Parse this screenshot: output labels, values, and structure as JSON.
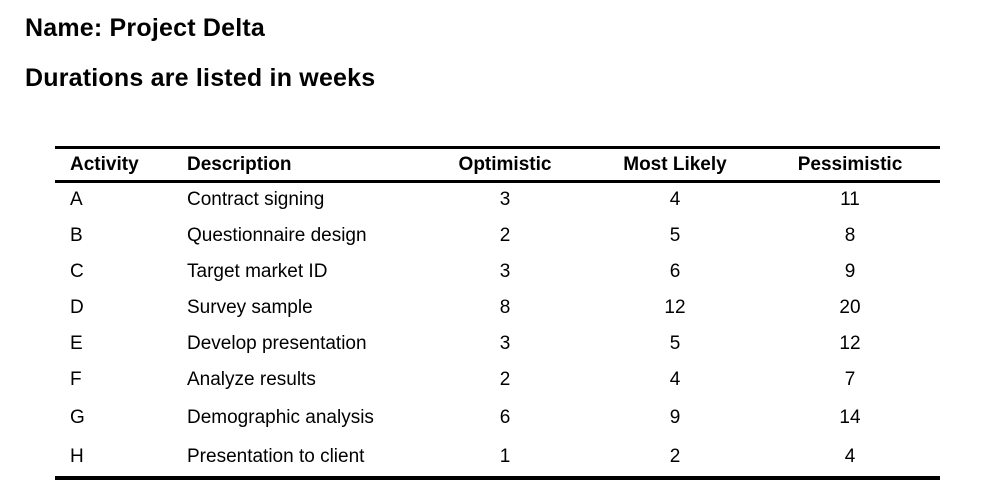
{
  "page": {
    "title": "Name: Project Delta",
    "subtitle": "Durations are listed in weeks"
  },
  "table": {
    "columns": [
      "Activity",
      "Description",
      "Optimistic",
      "Most Likely",
      "Pessimistic"
    ],
    "rows": [
      {
        "activity": "A",
        "description": "Contract signing",
        "optimistic": "3",
        "most_likely": "4",
        "pessimistic": "11"
      },
      {
        "activity": "B",
        "description": "Questionnaire design",
        "optimistic": "2",
        "most_likely": "5",
        "pessimistic": "8"
      },
      {
        "activity": "C",
        "description": "Target market ID",
        "optimistic": "3",
        "most_likely": "6",
        "pessimistic": "9"
      },
      {
        "activity": "D",
        "description": "Survey sample",
        "optimistic": "8",
        "most_likely": "12",
        "pessimistic": "20"
      },
      {
        "activity": "E",
        "description": "Develop presentation",
        "optimistic": "3",
        "most_likely": "5",
        "pessimistic": "12"
      },
      {
        "activity": "F",
        "description": "Analyze results",
        "optimistic": "2",
        "most_likely": "4",
        "pessimistic": "7"
      },
      {
        "activity": "G",
        "description": "Demographic analysis",
        "optimistic": "6",
        "most_likely": "9",
        "pessimistic": "14"
      },
      {
        "activity": "H",
        "description": "Presentation to client",
        "optimistic": "1",
        "most_likely": "2",
        "pessimistic": "4"
      }
    ],
    "colors": {
      "text": "#000000",
      "rule": "#000000",
      "background": "#ffffff"
    }
  }
}
